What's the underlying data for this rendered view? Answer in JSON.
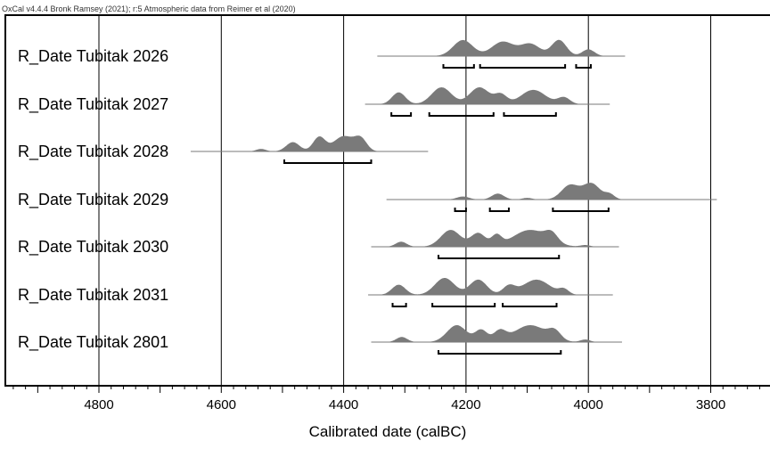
{
  "header": {
    "software_line": "OxCal v4.4.4 Bronk Ramsey (2021); r:5 Atmospheric data from Reimer et al (2020)"
  },
  "chart_data": {
    "type": "area",
    "title": "",
    "xlabel": "Calibrated date (calBC)",
    "ylabel": "",
    "xlim": [
      4950,
      3700
    ],
    "x_reversed": true,
    "x_ticks": [
      4800,
      4600,
      4400,
      4200,
      4000,
      3800
    ],
    "grid": "vertical",
    "colors": {
      "distribution": "#7a7a7a",
      "frame": "#000000",
      "gridline": "#000000"
    },
    "series": [
      {
        "name": "R_Date Tubitak 2026",
        "line_range": [
          4345,
          3940
        ],
        "peaks": [
          [
            4205,
            16,
            0.95
          ],
          [
            4140,
            18,
            0.85
          ],
          [
            4095,
            16,
            0.72
          ],
          [
            4048,
            12,
            0.95
          ],
          [
            4000,
            10,
            0.4
          ]
        ],
        "ranges_95": [
          [
            4237,
            4187
          ],
          [
            4177,
            4038
          ],
          [
            4020,
            3996
          ]
        ]
      },
      {
        "name": "R_Date Tubitak 2027",
        "line_range": [
          4365,
          3965
        ],
        "peaks": [
          [
            4310,
            11,
            0.7
          ],
          [
            4240,
            16,
            1.0
          ],
          [
            4178,
            16,
            1.0
          ],
          [
            4143,
            10,
            0.55
          ],
          [
            4090,
            20,
            0.85
          ],
          [
            4040,
            10,
            0.4
          ]
        ],
        "ranges_95": [
          [
            4322,
            4290
          ],
          [
            4260,
            4155
          ],
          [
            4138,
            4053
          ]
        ]
      },
      {
        "name": "R_Date Tubitak 2028",
        "line_range": [
          4650,
          4262
        ],
        "peaks": [
          [
            4535,
            8,
            0.15
          ],
          [
            4483,
            11,
            0.55
          ],
          [
            4440,
            10,
            0.85
          ],
          [
            4400,
            16,
            0.9
          ],
          [
            4372,
            10,
            0.7
          ]
        ],
        "ranges_95": [
          [
            4497,
            4355
          ]
        ]
      },
      {
        "name": "R_Date Tubitak 2029",
        "line_range": [
          4330,
          3790
        ],
        "peaks": [
          [
            4205,
            10,
            0.18
          ],
          [
            4148,
            10,
            0.35
          ],
          [
            4100,
            8,
            0.1
          ],
          [
            4030,
            14,
            0.85
          ],
          [
            3995,
            14,
            0.95
          ],
          [
            3965,
            8,
            0.3
          ]
        ],
        "ranges_95": [
          [
            4218,
            4200
          ],
          [
            4161,
            4130
          ],
          [
            4058,
            3967
          ]
        ]
      },
      {
        "name": "R_Date Tubitak 2030",
        "line_range": [
          4355,
          3950
        ],
        "peaks": [
          [
            4306,
            9,
            0.3
          ],
          [
            4225,
            16,
            1.0
          ],
          [
            4180,
            12,
            0.8
          ],
          [
            4150,
            8,
            0.6
          ],
          [
            4095,
            28,
            1.0
          ],
          [
            4060,
            10,
            0.5
          ],
          [
            4005,
            8,
            0.1
          ]
        ],
        "ranges_95": [
          [
            4245,
            4048
          ]
        ]
      },
      {
        "name": "R_Date Tubitak 2031",
        "line_range": [
          4360,
          3960
        ],
        "peaks": [
          [
            4310,
            11,
            0.6
          ],
          [
            4235,
            16,
            1.0
          ],
          [
            4180,
            14,
            0.9
          ],
          [
            4130,
            10,
            0.5
          ],
          [
            4085,
            22,
            0.9
          ],
          [
            4040,
            8,
            0.3
          ]
        ],
        "ranges_95": [
          [
            4320,
            4298
          ],
          [
            4255,
            4153
          ],
          [
            4140,
            4052
          ]
        ]
      },
      {
        "name": "R_Date Tubitak 2801",
        "line_range": [
          4355,
          3945
        ],
        "peaks": [
          [
            4305,
            9,
            0.3
          ],
          [
            4215,
            16,
            1.0
          ],
          [
            4175,
            10,
            0.7
          ],
          [
            4145,
            10,
            0.6
          ],
          [
            4095,
            26,
            1.0
          ],
          [
            4055,
            10,
            0.5
          ],
          [
            4005,
            8,
            0.15
          ]
        ],
        "ranges_95": [
          [
            4245,
            4045
          ]
        ]
      }
    ]
  }
}
